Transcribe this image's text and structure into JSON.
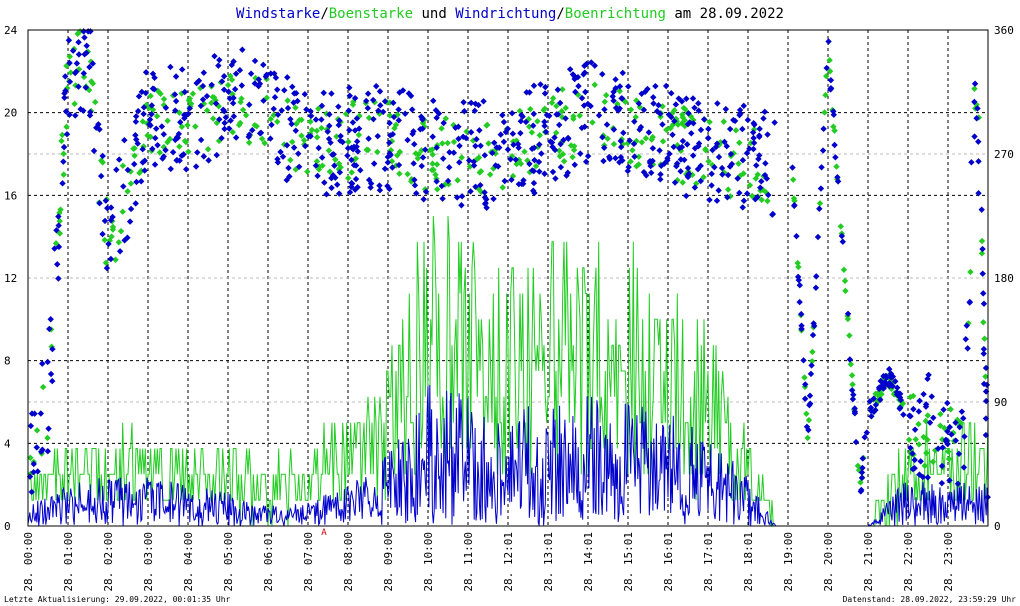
{
  "title": {
    "part1": "Windstarke",
    "sep1": "/",
    "part2": "Boenstarke",
    "part3": " und ",
    "part4": "Windrichtung",
    "sep2": "/",
    "part5": "Boenrichtung",
    "part6": " am 28.09.2022"
  },
  "footer": {
    "left": "Letzte Aktualisierung: 29.09.2022, 00:01:35 Uhr",
    "right": "Datenstand: 28.09.2022, 23:59:29 Uhr"
  },
  "marker": "A",
  "colors": {
    "wind": "#0000cc",
    "gust": "#22cc22",
    "grid": "#000000",
    "minor_grid": "#bbbbbb"
  },
  "chart_data": {
    "type": "line",
    "x_tick_labels": [
      "28. 00:00",
      "28. 01:00",
      "28. 02:00",
      "28. 03:00",
      "28. 04:00",
      "28. 05:00",
      "28. 06:01",
      "28. 07:00",
      "28. 08:00",
      "28. 09:00",
      "28. 10:00",
      "28. 11:00",
      "28. 12:01",
      "28. 13:01",
      "28. 14:01",
      "28. 15:01",
      "28. 16:01",
      "28. 17:01",
      "28. 18:01",
      "28. 19:00",
      "28. 20:00",
      "28. 21:00",
      "28. 22:00",
      "28. 23:00"
    ],
    "y_left_ticks": [
      "0",
      "4",
      "8",
      "12",
      "16",
      "20",
      "24"
    ],
    "y_right_ticks": [
      "0",
      "90",
      "180",
      "270",
      "360"
    ],
    "ylim": [
      0,
      24
    ],
    "y2lim": [
      0,
      360
    ],
    "xlim_hours": [
      0,
      24
    ],
    "grid": true,
    "series": [
      {
        "name": "Windstarke",
        "color": "#0000cc",
        "kind": "line",
        "profile_hours": [
          0,
          1,
          2,
          3,
          4,
          5,
          6,
          7,
          8,
          9,
          10,
          11,
          12,
          13,
          14,
          15,
          16,
          17,
          18,
          18.7,
          19,
          19.9,
          20,
          21,
          22,
          23,
          24
        ],
        "profile_values": [
          0.5,
          1.0,
          1.2,
          1.2,
          1.0,
          0.8,
          0.5,
          0.6,
          1.0,
          1.8,
          3.5,
          3.2,
          2.8,
          3.0,
          3.2,
          3.0,
          2.8,
          2.2,
          1.2,
          0,
          0,
          0,
          0,
          0,
          1.2,
          1.0,
          1.2
        ]
      },
      {
        "name": "Boenstarke",
        "color": "#22cc22",
        "kind": "line",
        "profile_hours": [
          0,
          1,
          2,
          3,
          4,
          5,
          6,
          7,
          8,
          9,
          10,
          11,
          12,
          13,
          14,
          15,
          16,
          17,
          18,
          18.7,
          19,
          19.9,
          20,
          21,
          22,
          23,
          24
        ],
        "profile_values": [
          2.0,
          2.5,
          2.8,
          3.0,
          2.5,
          2.5,
          2.0,
          2.5,
          3.5,
          5.5,
          10.0,
          9.0,
          8.0,
          9.0,
          9.0,
          9.0,
          7.5,
          6.5,
          3.5,
          0,
          0,
          0,
          0,
          0,
          3.0,
          3.0,
          3.0
        ]
      },
      {
        "name": "Windrichtung",
        "color": "#0000cc",
        "kind": "scatter",
        "axis": "right",
        "profile_hours": [
          0,
          0.5,
          1,
          1.5,
          2,
          3,
          4,
          5,
          6,
          7,
          8,
          9,
          10,
          11,
          12,
          13,
          14,
          15,
          16,
          17,
          18,
          18.7,
          19,
          19.5,
          20,
          20.8,
          21,
          21.5,
          22,
          23,
          23.4,
          23.7,
          24
        ],
        "profile_values": [
          50,
          90,
          330,
          340,
          200,
          300,
          290,
          310,
          300,
          280,
          280,
          280,
          270,
          270,
          270,
          285,
          300,
          290,
          280,
          270,
          265,
          260,
          320,
          60,
          350,
          25,
          80,
          110,
          80,
          60,
          60,
          340,
          40
        ]
      },
      {
        "name": "Boenrichtung",
        "color": "#22cc22",
        "kind": "scatter",
        "axis": "right",
        "profile_hours": [
          0,
          0.5,
          1,
          1.5,
          2,
          3,
          4,
          5,
          6,
          7,
          8,
          9,
          10,
          11,
          12,
          13,
          14,
          15,
          16,
          17,
          18,
          18.7,
          19,
          19.5,
          20,
          20.8,
          21,
          21.5,
          22,
          23,
          23.4,
          23.7,
          24
        ],
        "profile_values": [
          50,
          90,
          330,
          340,
          200,
          300,
          290,
          310,
          300,
          280,
          280,
          280,
          270,
          270,
          270,
          285,
          300,
          290,
          280,
          270,
          265,
          260,
          320,
          60,
          350,
          25,
          80,
          110,
          80,
          60,
          60,
          340,
          40
        ]
      }
    ]
  }
}
